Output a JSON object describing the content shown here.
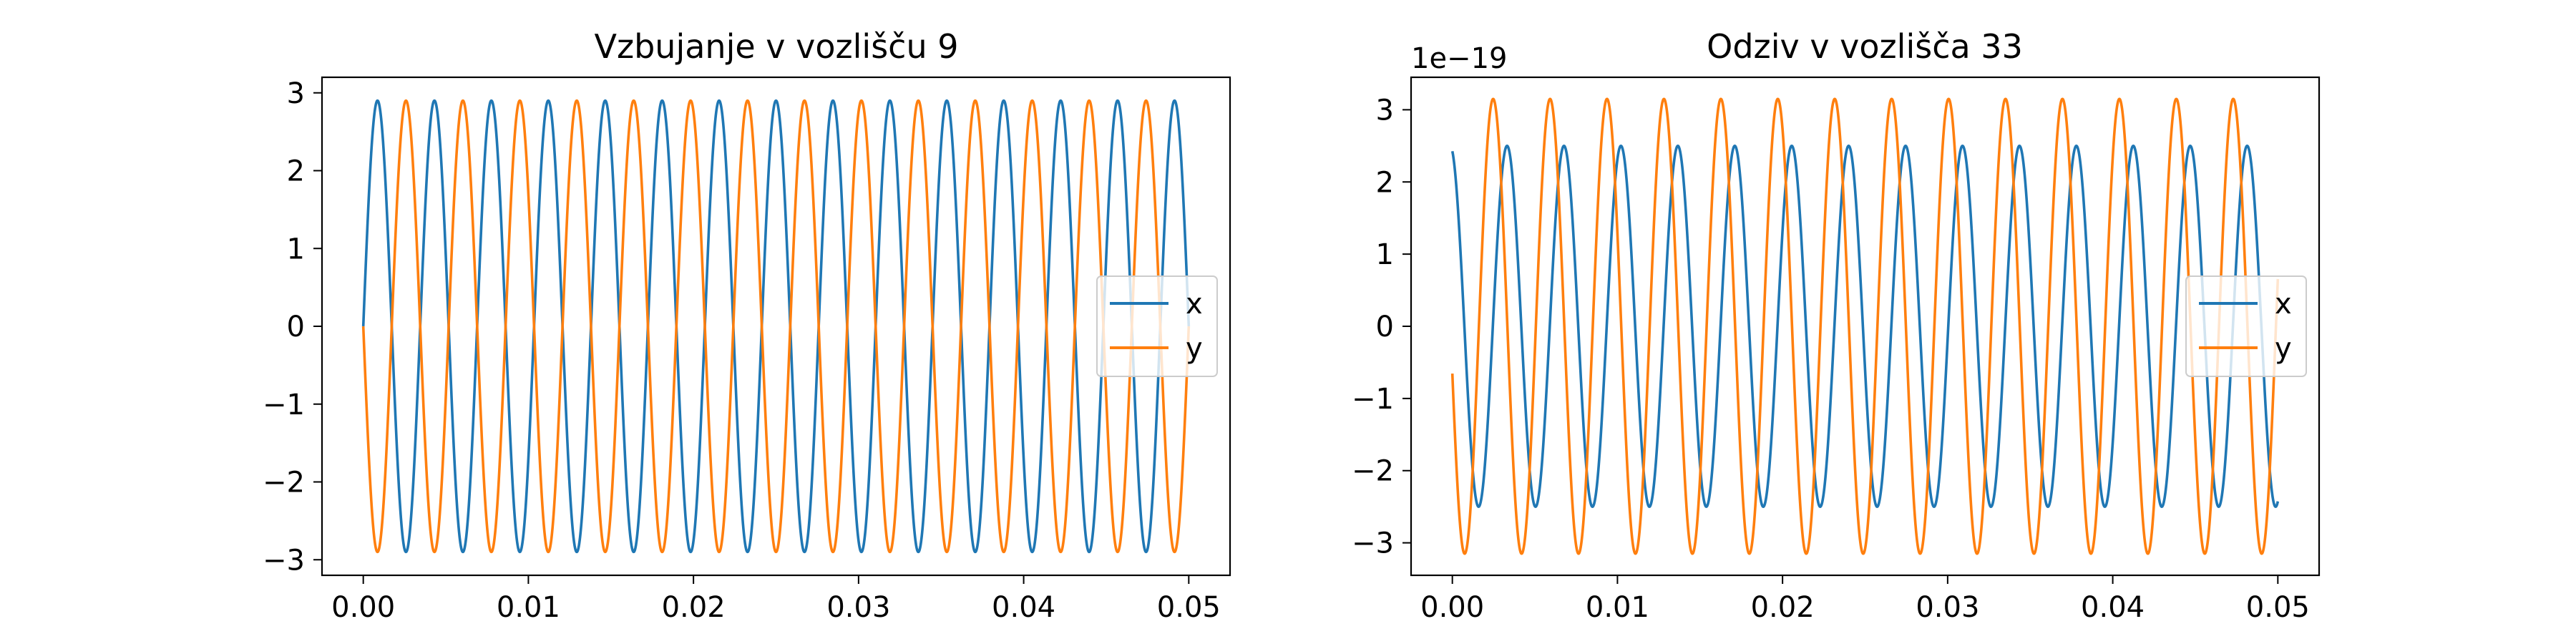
{
  "chart_data": [
    {
      "type": "line",
      "title": "Vzbujanje v vozlišču 9",
      "xlabel": "",
      "ylabel": "",
      "offset_text": "",
      "x_range": [
        0,
        0.05
      ],
      "xlim": [
        -0.0025,
        0.0525
      ],
      "ylim": [
        -3.2,
        3.2
      ],
      "x_ticks": [
        0,
        0.01,
        0.02,
        0.03,
        0.04,
        0.05
      ],
      "x_tick_labels": [
        "0.00",
        "0.01",
        "0.02",
        "0.03",
        "0.04",
        "0.05"
      ],
      "y_ticks": [
        -3,
        -2,
        -1,
        0,
        1,
        2,
        3
      ],
      "y_tick_labels": [
        "−3",
        "−2",
        "−1",
        "0",
        "1",
        "2",
        "3"
      ],
      "grid": false,
      "legend_position": "center-right",
      "series": [
        {
          "name": "x",
          "color": "#1f77b4",
          "function": "sine",
          "amplitude": 2.9,
          "frequency_hz": 290,
          "phase_deg": 0
        },
        {
          "name": "y",
          "color": "#ff7f0e",
          "function": "sine",
          "amplitude": 2.9,
          "frequency_hz": 290,
          "phase_deg": 180
        }
      ]
    },
    {
      "type": "line",
      "title": "Odziv v vozlišča 33",
      "xlabel": "",
      "ylabel": "",
      "offset_text": "1e−19",
      "x_range": [
        0,
        0.05
      ],
      "xlim": [
        -0.0025,
        0.0525
      ],
      "ylim": [
        -3.45,
        3.45
      ],
      "x_ticks": [
        0,
        0.01,
        0.02,
        0.03,
        0.04,
        0.05
      ],
      "x_tick_labels": [
        "0.00",
        "0.01",
        "0.02",
        "0.03",
        "0.04",
        "0.05"
      ],
      "y_ticks": [
        -3,
        -2,
        -1,
        0,
        1,
        2,
        3
      ],
      "y_tick_labels": [
        "−3",
        "−2",
        "−1",
        "0",
        "1",
        "2",
        "3"
      ],
      "grid": false,
      "legend_position": "center-right",
      "series": [
        {
          "name": "x",
          "color": "#1f77b4",
          "function": "sine",
          "amplitude": 2.5,
          "frequency_hz": 290,
          "phase_deg": 104
        },
        {
          "name": "y",
          "color": "#ff7f0e",
          "function": "sine",
          "amplitude": 3.15,
          "frequency_hz": 290,
          "phase_deg": 192
        }
      ]
    }
  ]
}
